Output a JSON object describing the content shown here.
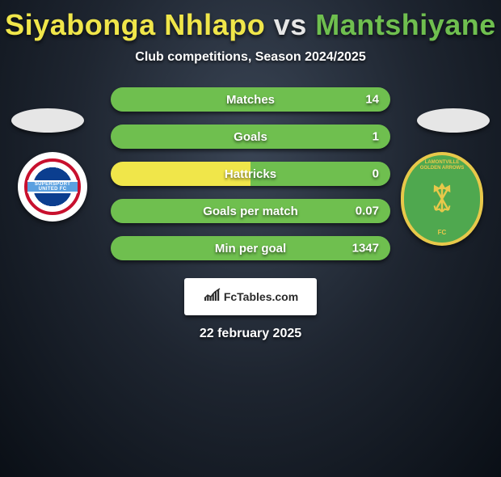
{
  "title": {
    "player1": "Siyabonga Nhlapo",
    "vs": "vs",
    "player2": "Mantshiyane",
    "color1": "#f0e64a",
    "vs_color": "#e6e6e6",
    "color2": "#6fbf4f"
  },
  "subtitle": "Club competitions, Season 2024/2025",
  "stats": {
    "bar_color_left": "#f0e64a",
    "bar_color_right": "#6fbf4f",
    "rows": [
      {
        "label": "Matches",
        "left": "",
        "right": "14",
        "pct_left": 0
      },
      {
        "label": "Goals",
        "left": "",
        "right": "1",
        "pct_left": 0
      },
      {
        "label": "Hattricks",
        "left": "",
        "right": "0",
        "pct_left": 50
      },
      {
        "label": "Goals per match",
        "left": "",
        "right": "0.07",
        "pct_left": 0
      },
      {
        "label": "Min per goal",
        "left": "",
        "right": "1347",
        "pct_left": 0
      }
    ]
  },
  "crest_left": {
    "line1": "SUPERSPORT",
    "line2": "UNITED FC"
  },
  "crest_right": {
    "top1": "LAMONTVILLE",
    "top2": "GOLDEN ARROWS",
    "band": "ABAFANA BES'THENDE",
    "fc": "FC",
    "arrow_color": "#e8c84a"
  },
  "brand": {
    "text": "FcTables.com",
    "icon_color": "#2a2a2a"
  },
  "date": "22 february 2025"
}
